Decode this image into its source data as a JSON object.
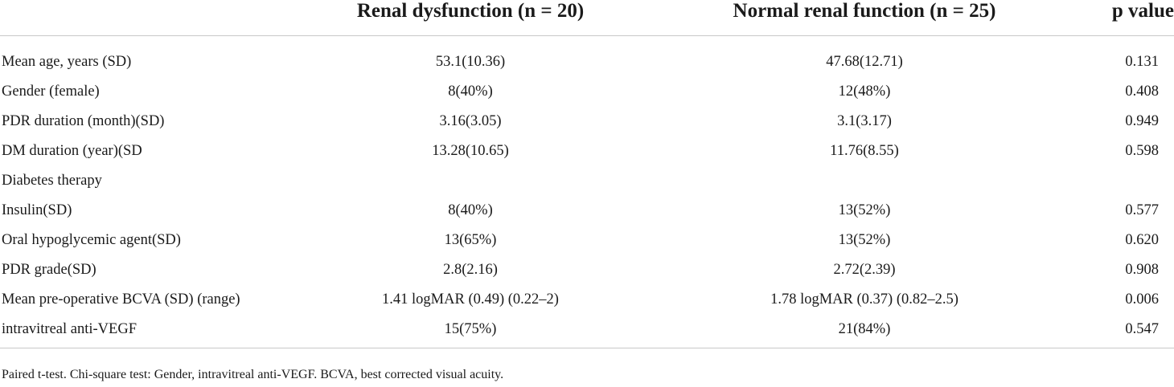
{
  "table": {
    "headers": {
      "label": "",
      "renal_dysfunction": "Renal dysfunction (n = 20)",
      "normal_renal_function": "Normal renal function (n = 25)",
      "p_value": "p value"
    },
    "rows": [
      {
        "label": "Mean age, years (SD)",
        "renal_dysfunction": "53.1(10.36)",
        "normal": "47.68(12.71)",
        "p": "0.131"
      },
      {
        "label": "Gender (female)",
        "renal_dysfunction": "8(40%)",
        "normal": "12(48%)",
        "p": "0.408"
      },
      {
        "label": "PDR duration (month)(SD)",
        "renal_dysfunction": "3.16(3.05)",
        "normal": "3.1(3.17)",
        "p": "0.949"
      },
      {
        "label": "DM duration (year)(SD",
        "renal_dysfunction": "13.28(10.65)",
        "normal": "11.76(8.55)",
        "p": "0.598"
      },
      {
        "label": "Diabetes therapy",
        "renal_dysfunction": "",
        "normal": "",
        "p": ""
      },
      {
        "label": "Insulin(SD)",
        "renal_dysfunction": "8(40%)",
        "normal": "13(52%)",
        "p": "0.577"
      },
      {
        "label": "Oral hypoglycemic agent(SD)",
        "renal_dysfunction": "13(65%)",
        "normal": "13(52%)",
        "p": "0.620"
      },
      {
        "label": "PDR grade(SD)",
        "renal_dysfunction": "2.8(2.16)",
        "normal": "2.72(2.39)",
        "p": "0.908"
      },
      {
        "label": "Mean pre-operative BCVA (SD) (range)",
        "renal_dysfunction": "1.41 logMAR (0.49) (0.22–2)",
        "normal": "1.78 logMAR (0.37) (0.82–2.5)",
        "p": "0.006"
      },
      {
        "label": "intravitreal anti-VEGF",
        "renal_dysfunction": "15(75%)",
        "normal": "21(84%)",
        "p": "0.547"
      }
    ]
  },
  "footnote": "Paired t-test. Chi-square test: Gender, intravitreal anti-VEGF. BCVA, best corrected visual acuity."
}
